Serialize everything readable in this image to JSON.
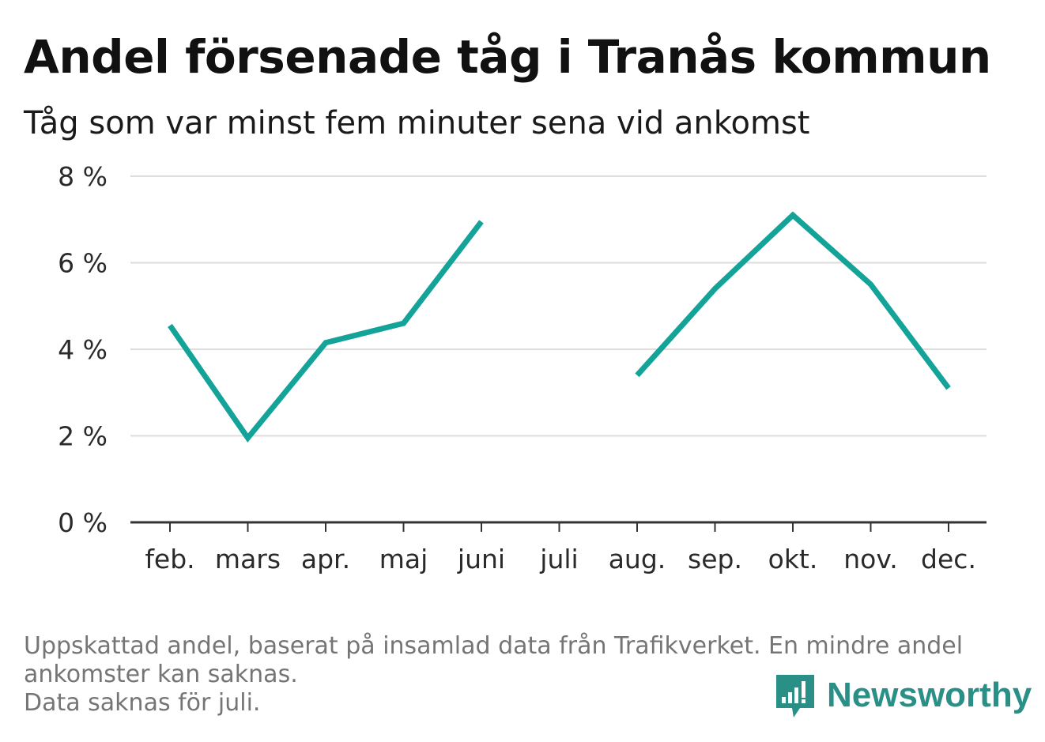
{
  "title": "Andel försenade tåg i Tranås kommun",
  "subtitle": "Tåg som var minst fem minuter sena vid ankomst",
  "footer": {
    "line1": "Uppskattad andel, baserat på insamlad data från Trafikverket. En mindre andel",
    "line2": "ankomster kan saknas.",
    "line3": "Data saknas för juli."
  },
  "brand": {
    "name": "Newsworthy",
    "icon": "bar-chart-speech-bubble-icon"
  },
  "colors": {
    "line": "#14a398",
    "grid": "#dddddd",
    "axis": "#333333",
    "brand": "#2a8f86"
  },
  "chart_data": {
    "type": "line",
    "categories": [
      "feb.",
      "mars",
      "apr.",
      "maj",
      "juni",
      "juli",
      "aug.",
      "sep.",
      "okt.",
      "nov.",
      "dec."
    ],
    "series": [
      {
        "values": [
          4.55,
          1.95,
          4.15,
          4.6,
          6.95,
          null,
          3.4,
          5.4,
          7.1,
          5.5,
          3.1
        ]
      }
    ],
    "yticks": [
      "0 %",
      "2 %",
      "4 %",
      "6 %",
      "8 %"
    ],
    "ylim": [
      0,
      8
    ],
    "grid": true,
    "note": "Data saknas för juli."
  }
}
